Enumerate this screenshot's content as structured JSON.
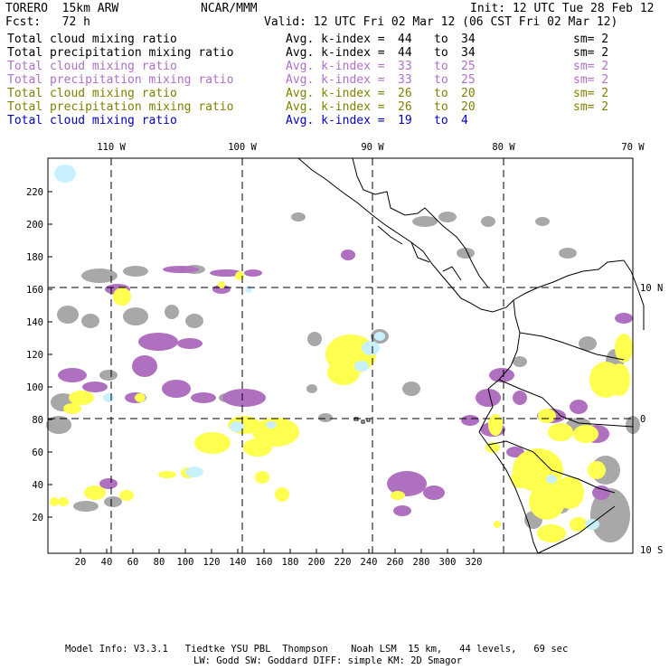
{
  "header": {
    "model": "TORERO  15km ARW",
    "org": "NCAR/MMM",
    "init": "Init: 12 UTC Tue 28 Feb 12",
    "fcst": "Fcst:   72 h",
    "valid": "Valid: 12 UTC Fri 02 Mar 12 (06 CST Fri 02 Mar 12)"
  },
  "legend": [
    {
      "field": "Total cloud mixing ratio",
      "kindex": "Avg. k-index =",
      "from": "44",
      "to_word": "to",
      "to": "34",
      "sm": "sm= 2",
      "color": "#000000"
    },
    {
      "field": "Total precipitation mixing ratio",
      "kindex": "Avg. k-index =",
      "from": "44",
      "to_word": "to",
      "to": "34",
      "sm": "sm= 2",
      "color": "#000000"
    },
    {
      "field": "Total cloud mixing ratio",
      "kindex": "Avg. k-index =",
      "from": "33",
      "to_word": "to",
      "to": "25",
      "sm": "sm= 2",
      "color": "#b070c8"
    },
    {
      "field": "Total precipitation mixing ratio",
      "kindex": "Avg. k-index =",
      "from": "33",
      "to_word": "to",
      "to": "25",
      "sm": "sm= 2",
      "color": "#b070c8"
    },
    {
      "field": "Total cloud mixing ratio",
      "kindex": "Avg. k-index =",
      "from": "26",
      "to_word": "to",
      "to": "20",
      "sm": "sm= 2",
      "color": "#808000"
    },
    {
      "field": "Total precipitation mixing ratio",
      "kindex": "Avg. k-index =",
      "from": "26",
      "to_word": "to",
      "to": "20",
      "sm": "sm= 2",
      "color": "#808000"
    },
    {
      "field": "Total cloud mixing ratio",
      "kindex": "Avg. k-index =",
      "from": "19",
      "to_word": "to",
      "to": "4",
      "sm": "",
      "color": "#0000c8"
    }
  ],
  "map": {
    "lon_labels": [
      "110 W",
      "100 W",
      "90 W",
      "80 W",
      "70 W"
    ],
    "lat_labels": [
      "10 N",
      "0",
      "10 S"
    ],
    "x_ticks": [
      "20",
      "40",
      "60",
      "80",
      "100",
      "120",
      "140",
      "160",
      "180",
      "200",
      "220",
      "240",
      "260",
      "280",
      "300",
      "320"
    ],
    "y_ticks": [
      "20",
      "40",
      "60",
      "80",
      "100",
      "120",
      "140",
      "160",
      "180",
      "200",
      "220"
    ],
    "colors": {
      "gray_cloud": "#a8a8a8",
      "purple": "#b070c0",
      "yellow": "#ffff50",
      "light_blue": "#c8f0ff"
    }
  },
  "footer": {
    "line1": "Model Info: V3.3.1   Tiedtke YSU PBL  Thompson    Noah LSM  15 km,   44 levels,   69 sec",
    "line2": "LW: Godd SW: Goddard DIFF: simple KM: 2D Smagor"
  }
}
